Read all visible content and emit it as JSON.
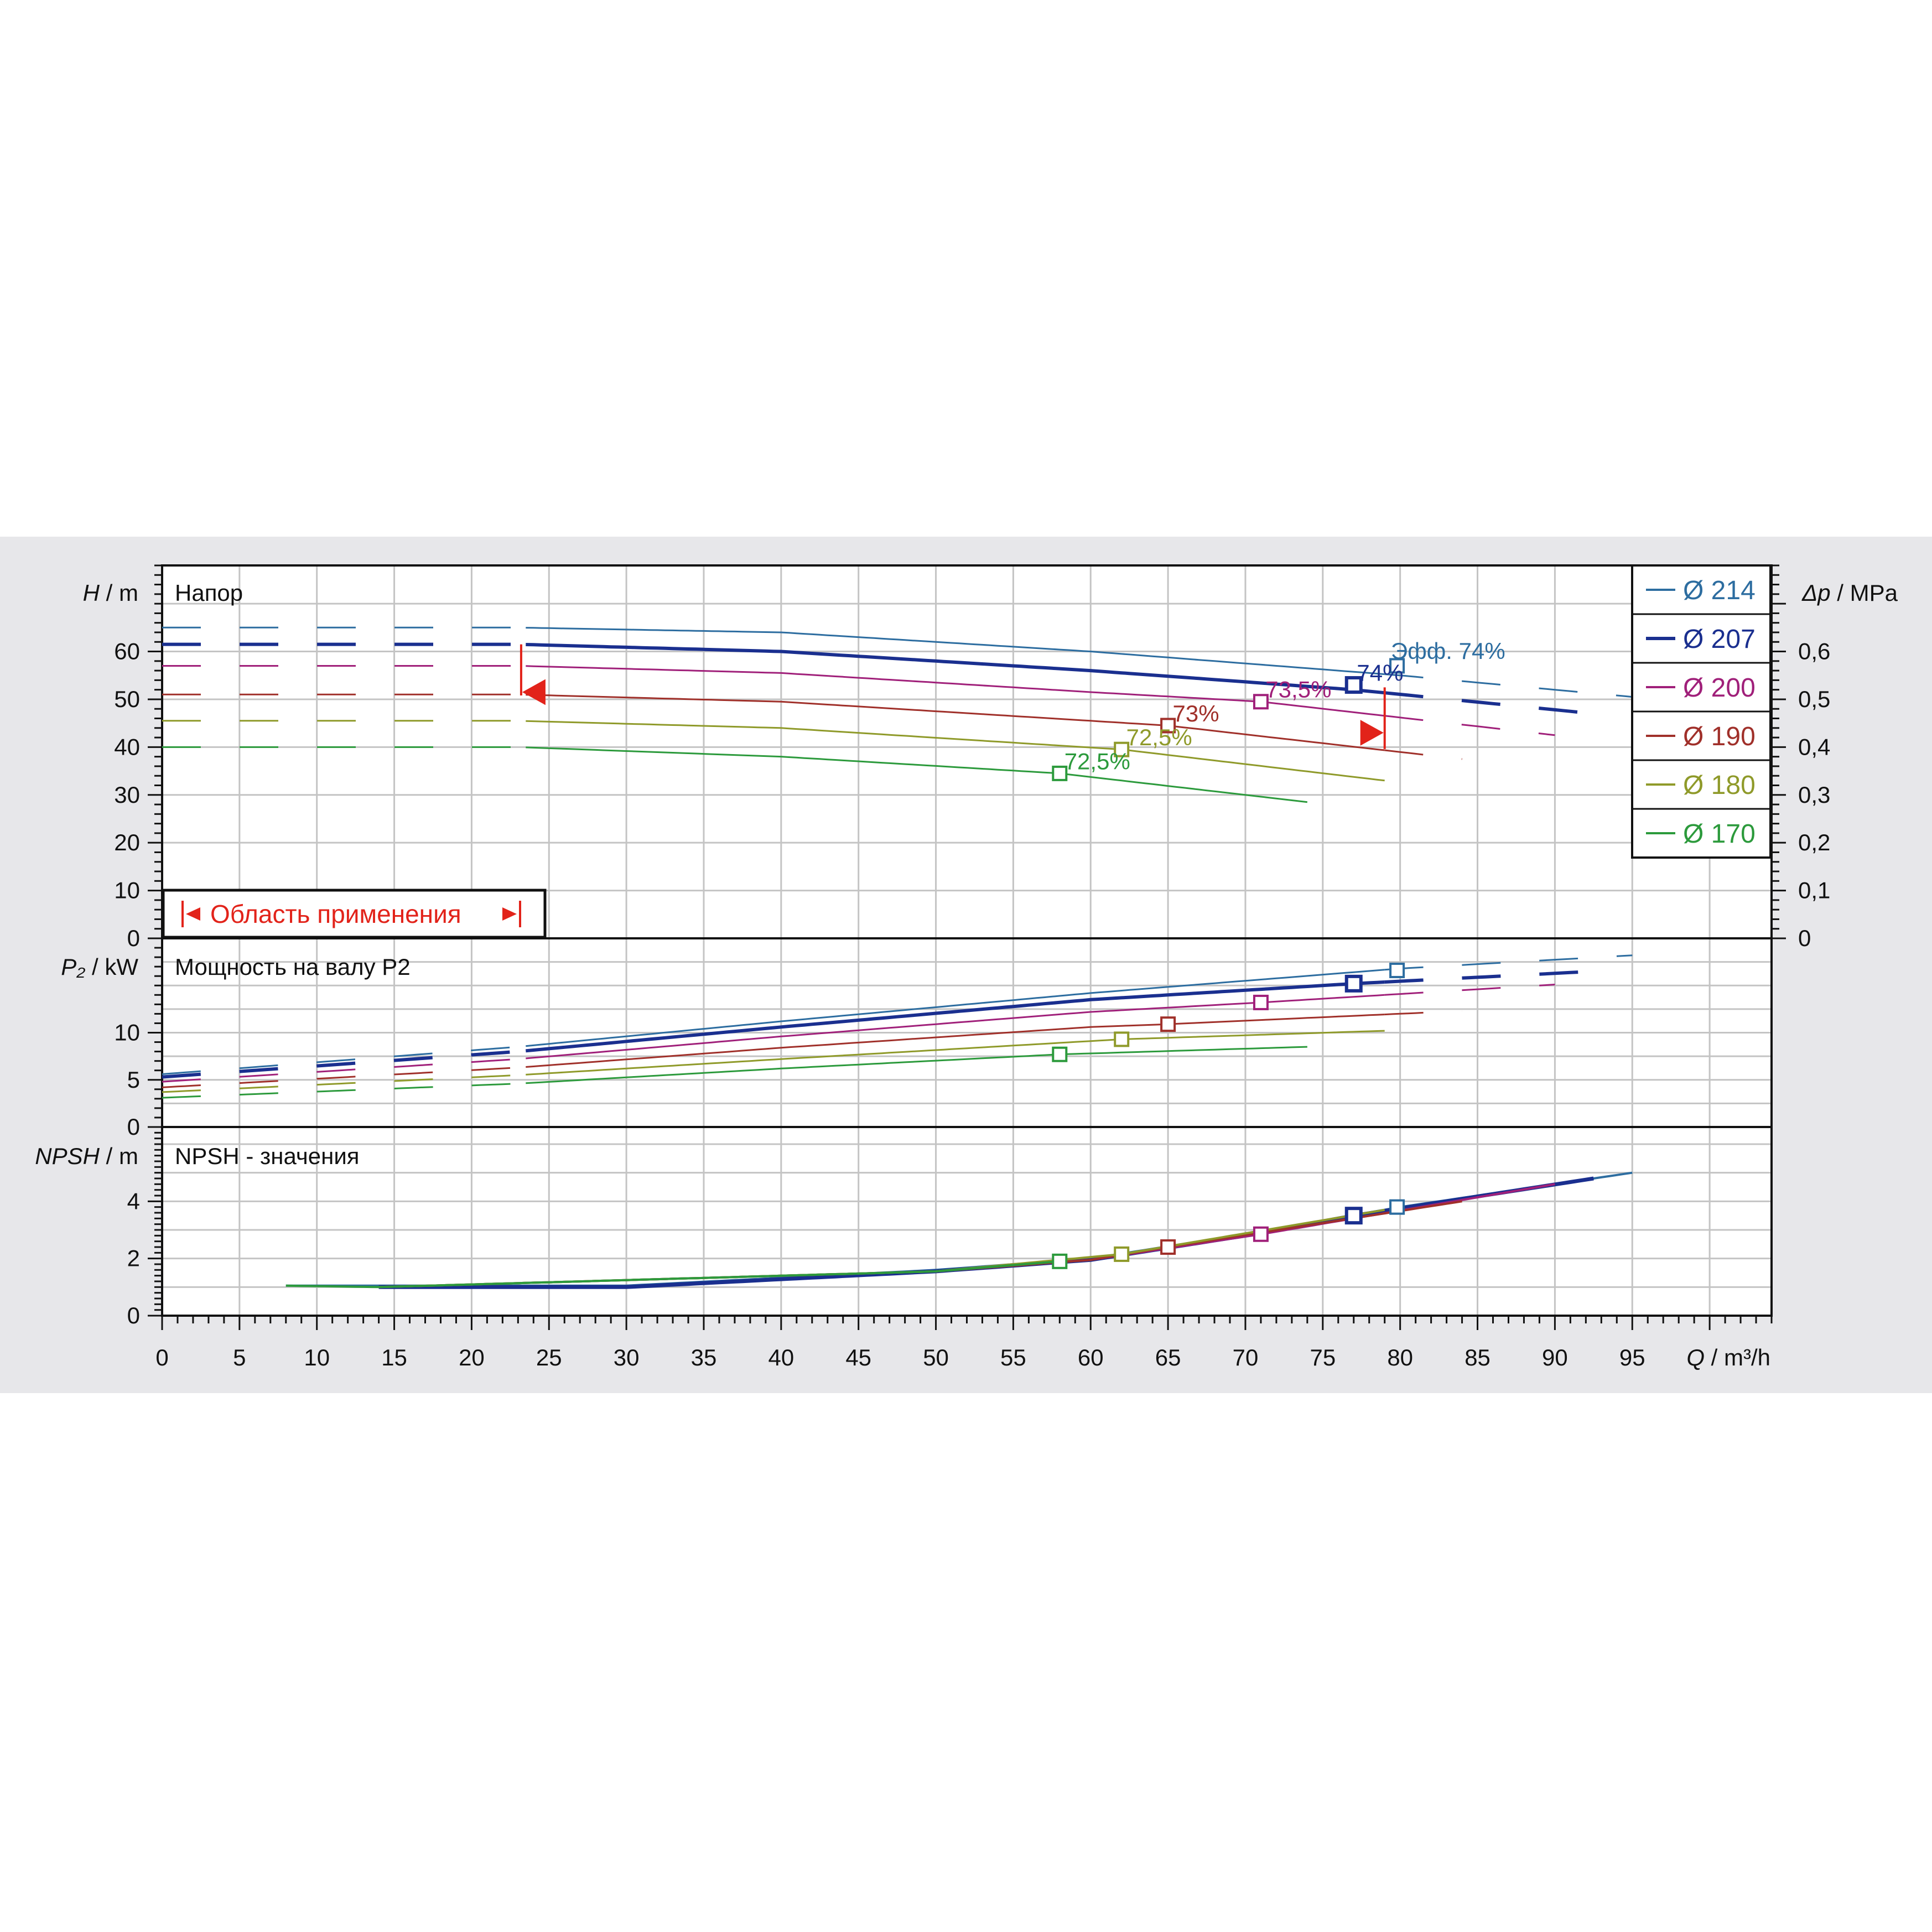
{
  "chart_data": {
    "type": "line",
    "x_axis": {
      "label_var": "Q",
      "label_unit": "m³/h",
      "xlim": [
        0,
        104
      ],
      "ticks": [
        0,
        5,
        10,
        15,
        20,
        25,
        30,
        35,
        40,
        45,
        50,
        55,
        60,
        65,
        70,
        75,
        80,
        85,
        90,
        95
      ]
    },
    "panels": {
      "head": {
        "title": "Напор",
        "ylabel_var": "H",
        "ylabel_unit": "m",
        "ylim": [
          0,
          78
        ],
        "yticks": [
          0,
          10,
          20,
          30,
          40,
          50,
          60
        ],
        "right_axis": {
          "label_var": "Δp",
          "label_unit": "MPa",
          "ticks": [
            "0",
            "0,1",
            "0,2",
            "0,3",
            "0,4",
            "0,5",
            "0,6"
          ]
        },
        "application_area_label": "Область применения",
        "application_area_q": [
          23.2,
          79
        ],
        "efficiency_label": "Эфф.  74%"
      },
      "power": {
        "title": "Мощность на валу P2",
        "ylabel_var": "P₂",
        "ylabel_unit": "kW",
        "ylim": [
          0,
          20
        ],
        "yticks": [
          0,
          5,
          10
        ]
      },
      "npsh": {
        "title": "NPSH - значения",
        "ylabel_var": "NPSH",
        "ylabel_unit": "m",
        "ylim": [
          0,
          6.6
        ],
        "yticks": [
          0,
          2,
          4
        ]
      }
    },
    "series": [
      {
        "name": "Ø 214",
        "color": "#2d6da0",
        "width": 3,
        "head": {
          "x": [
            0,
            23,
            40,
            60,
            80,
            95
          ],
          "y": [
            65,
            65,
            64,
            60,
            55,
            50.5
          ]
        },
        "power": {
          "x": [
            0,
            23,
            40,
            60,
            80,
            95
          ],
          "y": [
            5.6,
            8.5,
            11.2,
            14.2,
            16.8,
            18.2
          ]
        },
        "npsh": {
          "x": [
            8,
            30,
            50,
            60,
            70,
            80,
            95
          ],
          "y": [
            1.05,
            1.05,
            1.6,
            2.0,
            2.85,
            3.8,
            5.0
          ]
        },
        "bep": {
          "q": 79.8,
          "h": 57,
          "p": 16.6,
          "npsh": 3.8
        }
      },
      {
        "name": "Ø 207",
        "color": "#1a2f8f",
        "width": 6,
        "head": {
          "x": [
            0,
            23,
            40,
            60,
            77,
            92.5
          ],
          "y": [
            61.5,
            61.5,
            60,
            56,
            52,
            47
          ]
        },
        "power": {
          "x": [
            0,
            23,
            40,
            60,
            77,
            92.5
          ],
          "y": [
            5.3,
            8,
            10.6,
            13.5,
            15.2,
            16.5
          ]
        },
        "npsh": {
          "x": [
            14,
            30,
            50,
            60,
            70,
            77,
            92.5
          ],
          "y": [
            1.0,
            1.0,
            1.55,
            1.95,
            2.8,
            3.5,
            4.8
          ]
        },
        "bep": {
          "q": 77,
          "h": 53,
          "p": 15.2,
          "npsh": 3.5
        }
      },
      {
        "name": "Ø 200",
        "color": "#a0207a",
        "width": 3,
        "head": {
          "x": [
            0,
            23,
            40,
            60,
            71,
            90
          ],
          "y": [
            57,
            57,
            55.5,
            51.5,
            49.5,
            42.5
          ]
        },
        "power": {
          "x": [
            0,
            23,
            40,
            60,
            71,
            90
          ],
          "y": [
            4.8,
            7.2,
            9.6,
            12.2,
            13.2,
            15.1
          ]
        },
        "npsh": {
          "x": [
            14,
            50,
            60,
            71,
            90
          ],
          "y": [
            1.0,
            1.55,
            1.95,
            2.85,
            4.6
          ]
        },
        "bep": {
          "q": 71,
          "h": 49.5,
          "p": 13.2,
          "npsh": 2.85
        }
      },
      {
        "name": "Ø 190",
        "color": "#a0302a",
        "width": 3,
        "head": {
          "x": [
            0,
            23,
            40,
            60,
            65,
            84
          ],
          "y": [
            51,
            51,
            49.5,
            45.5,
            44.5,
            37.5
          ]
        },
        "power": {
          "x": [
            0,
            23,
            40,
            60,
            65,
            84
          ],
          "y": [
            4.2,
            6.3,
            8.4,
            10.6,
            10.9,
            12.3
          ]
        },
        "npsh": {
          "x": [
            14,
            50,
            60,
            65,
            84
          ],
          "y": [
            1.0,
            1.55,
            1.95,
            2.4,
            4.0
          ]
        },
        "bep": {
          "q": 65,
          "h": 44.5,
          "p": 10.9,
          "npsh": 2.4
        }
      },
      {
        "name": "Ø 180",
        "color": "#8f9a2a",
        "width": 3,
        "head": {
          "x": [
            0,
            23,
            40,
            62,
            79
          ],
          "y": [
            45.5,
            45.5,
            44,
            39.5,
            33
          ]
        },
        "power": {
          "x": [
            0,
            23,
            40,
            62,
            79
          ],
          "y": [
            3.7,
            5.5,
            7.2,
            9.3,
            10.2
          ]
        },
        "npsh": {
          "x": [
            14,
            50,
            62,
            79
          ],
          "y": [
            1.0,
            1.55,
            2.15,
            3.7
          ]
        },
        "bep": {
          "q": 62,
          "h": 39.5,
          "p": 9.3,
          "npsh": 2.15
        }
      },
      {
        "name": "Ø 170",
        "color": "#2c9a3c",
        "width": 3,
        "head": {
          "x": [
            0,
            23,
            40,
            58,
            74
          ],
          "y": [
            40,
            40,
            38,
            34.5,
            28.5
          ]
        },
        "power": {
          "x": [
            0,
            23,
            40,
            58,
            74
          ],
          "y": [
            3.1,
            4.6,
            6.2,
            7.7,
            8.5
          ]
        },
        "npsh": {
          "x": [
            8,
            14,
            50,
            58
          ],
          "y": [
            1.05,
            1.0,
            1.55,
            1.9
          ]
        },
        "bep": {
          "q": 58,
          "h": 34.5,
          "p": 7.7,
          "npsh": 1.9
        }
      }
    ],
    "efficiency_labels": [
      {
        "text": "74%",
        "q": 77.2,
        "h": 55.5,
        "color": "#1a2f8f"
      },
      {
        "text": "73,5%",
        "q": 71.3,
        "h": 52,
        "color": "#a0207a"
      },
      {
        "text": "73%",
        "q": 65.3,
        "h": 47,
        "color": "#a0302a"
      },
      {
        "text": "72,5%",
        "q": 62.3,
        "h": 42,
        "color": "#8f9a2a"
      },
      {
        "text": "72,5%",
        "q": 58.3,
        "h": 37,
        "color": "#2c9a3c"
      }
    ]
  }
}
